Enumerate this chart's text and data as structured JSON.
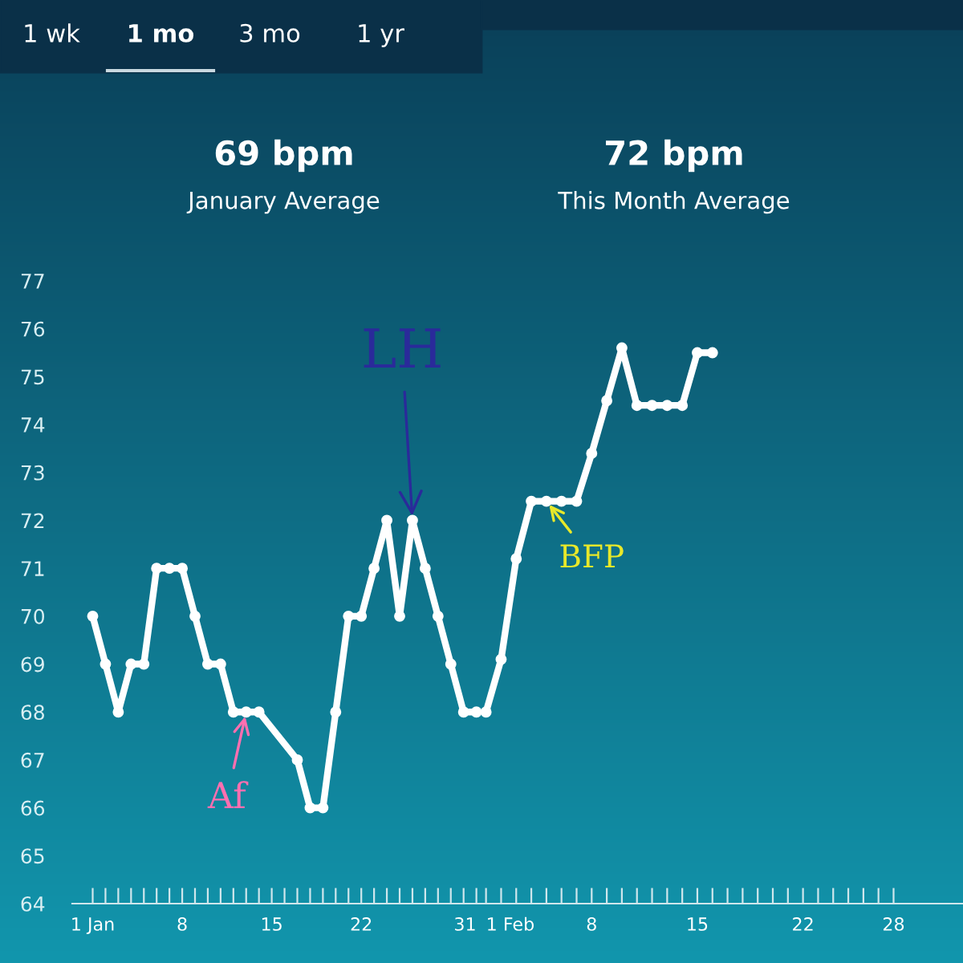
{
  "chart_data": [
    {
      "type": "line",
      "title": "69 bpm",
      "subtitle": "January Average",
      "annotations": [
        "1 wk",
        "1 mo",
        "3 mo",
        "1 yr",
        {
          "text": "Af",
          "x": 13,
          "y": 68
        },
        {
          "text": "LH",
          "x": 26,
          "y": 72
        }
      ],
      "x": [
        1,
        2,
        3,
        4,
        5,
        6,
        7,
        8,
        9,
        10,
        11,
        12,
        13,
        14,
        17,
        18,
        19,
        20,
        21,
        22,
        23,
        24,
        25,
        26,
        27,
        28,
        29,
        30,
        31
      ],
      "series": [
        {
          "color": "#ffffff",
          "values": [
            70,
            69,
            68,
            69,
            69,
            71,
            71,
            71,
            70,
            69,
            69,
            68,
            68,
            68,
            67,
            66,
            66,
            68,
            70,
            70,
            71,
            72,
            70,
            72,
            71,
            70,
            69,
            68,
            68
          ]
        }
      ],
      "xlim": [
        -0.6,
        31.4
      ],
      "xticks": [
        {
          "value": 1,
          "label": "1 Jan"
        },
        {
          "value": 2,
          "label": null
        },
        {
          "value": 3,
          "label": null
        },
        {
          "value": 4,
          "label": null
        },
        {
          "value": 5,
          "label": null
        },
        {
          "value": 6,
          "label": null
        },
        {
          "value": 7,
          "label": null
        },
        8,
        {
          "value": 9,
          "label": null
        },
        {
          "value": 10,
          "label": null
        },
        {
          "value": 11,
          "label": null
        },
        {
          "value": 12,
          "label": null
        },
        {
          "value": 13,
          "label": null
        },
        {
          "value": 14,
          "label": null
        },
        15,
        {
          "value": 16,
          "label": null
        },
        {
          "value": 17,
          "label": null
        },
        {
          "value": 18,
          "label": null
        },
        {
          "value": 19,
          "label": null
        },
        {
          "value": 20,
          "label": null
        },
        {
          "value": 21,
          "label": null
        },
        22,
        {
          "value": 23,
          "label": null
        },
        {
          "value": 24,
          "label": null
        },
        {
          "value": 25,
          "label": null
        },
        {
          "value": 26,
          "label": null
        },
        {
          "value": 27,
          "label": null
        },
        {
          "value": 28,
          "label": null
        },
        {
          "value": 29,
          "label": null
        },
        {
          "value": 30,
          "label": null
        },
        31
      ],
      "ylim": [
        64,
        77
      ],
      "yticks": [
        64,
        65,
        66,
        67,
        68,
        69,
        70,
        71,
        72,
        73,
        74,
        75,
        76,
        77
      ],
      "marker": "circle",
      "grid": false,
      "legend": false
    },
    {
      "type": "line",
      "title": "72 bpm",
      "subtitle": "This Month Average",
      "annotations": [
        {
          "text": "BFP",
          "x": 5,
          "y": 72.4
        }
      ],
      "x": [
        1,
        2,
        3,
        4,
        5,
        6,
        7,
        8,
        9,
        10,
        11,
        12,
        13,
        14,
        15,
        16
      ],
      "series": [
        {
          "color": "#ffffff",
          "values": [
            68.0,
            69.1,
            71.2,
            72.4,
            72.4,
            72.4,
            72.4,
            73.4,
            74.5,
            75.6,
            74.4,
            74.4,
            74.4,
            74.4,
            75.5,
            75.5
          ]
        }
      ],
      "xlim": [
        0.7,
        32.6
      ],
      "xticks": [
        {
          "value": 1,
          "label": "1 Feb"
        },
        {
          "value": 2,
          "label": null
        },
        {
          "value": 3,
          "label": null
        },
        {
          "value": 4,
          "label": null
        },
        {
          "value": 5,
          "label": null
        },
        {
          "value": 6,
          "label": null
        },
        {
          "value": 7,
          "label": null
        },
        8,
        {
          "value": 9,
          "label": null
        },
        {
          "value": 10,
          "label": null
        },
        {
          "value": 11,
          "label": null
        },
        {
          "value": 12,
          "label": null
        },
        {
          "value": 13,
          "label": null
        },
        {
          "value": 14,
          "label": null
        },
        15,
        {
          "value": 16,
          "label": null
        },
        {
          "value": 17,
          "label": null
        },
        {
          "value": 18,
          "label": null
        },
        {
          "value": 19,
          "label": null
        },
        {
          "value": 20,
          "label": null
        },
        {
          "value": 21,
          "label": null
        },
        22,
        {
          "value": 23,
          "label": null
        },
        {
          "value": 24,
          "label": null
        },
        {
          "value": 25,
          "label": null
        },
        {
          "value": 26,
          "label": null
        },
        {
          "value": 27,
          "label": null
        },
        28
      ],
      "ylim": [
        64,
        77
      ],
      "tick_labels": "x",
      "marker": "circle",
      "grid": false,
      "legend": false
    }
  ]
}
